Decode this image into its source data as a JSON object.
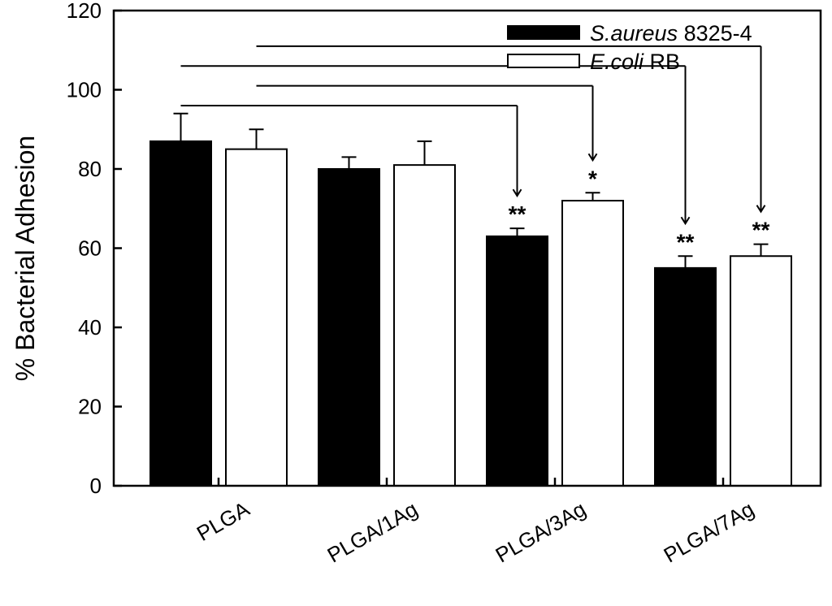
{
  "chart_data": {
    "type": "bar",
    "categories": [
      "PLGA",
      "PLGA/1Ag",
      "PLGA/3Ag",
      "PLGA/7Ag"
    ],
    "series": [
      {
        "name_italic": "S.aureus",
        "name_rest": "8325-4",
        "color": "#000000",
        "values": [
          87,
          80,
          63,
          55
        ],
        "errors": [
          7,
          3,
          2,
          3
        ]
      },
      {
        "name_italic": "E.coli",
        "name_rest": "RB",
        "color": "#ffffff",
        "values": [
          85,
          81,
          72,
          58
        ],
        "errors": [
          5,
          6,
          2,
          3
        ]
      }
    ],
    "ylabel": "% Bacterial Adhesion",
    "ylim": [
      0,
      120
    ],
    "yticks": [
      0,
      20,
      40,
      60,
      80,
      100,
      120
    ],
    "legend_position": "top-right",
    "grid": false,
    "significance": [
      {
        "category_index": 2,
        "series_index": 0,
        "label": "**"
      },
      {
        "category_index": 2,
        "series_index": 1,
        "label": "*"
      },
      {
        "category_index": 3,
        "series_index": 0,
        "label": "**"
      },
      {
        "category_index": 3,
        "series_index": 1,
        "label": "**"
      }
    ],
    "comparison_brackets": [
      {
        "from": {
          "category_index": 0,
          "series_index": 0
        },
        "to": {
          "category_index": 2,
          "series_index": 0
        },
        "level_value": 96
      },
      {
        "from": {
          "category_index": 0,
          "series_index": 1
        },
        "to": {
          "category_index": 2,
          "series_index": 1
        },
        "level_value": 101
      },
      {
        "from": {
          "category_index": 0,
          "series_index": 0
        },
        "to": {
          "category_index": 3,
          "series_index": 0
        },
        "level_value": 106
      },
      {
        "from": {
          "category_index": 0,
          "series_index": 1
        },
        "to": {
          "category_index": 3,
          "series_index": 1
        },
        "level_value": 111
      }
    ]
  }
}
